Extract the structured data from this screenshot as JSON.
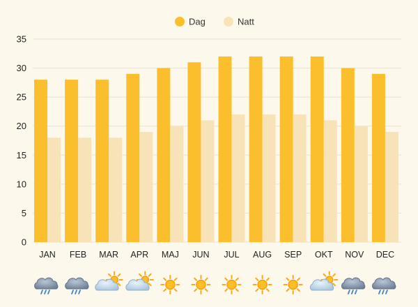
{
  "chart_data": {
    "type": "bar",
    "categories": [
      "JAN",
      "FEB",
      "MAR",
      "APR",
      "MAJ",
      "JUN",
      "JUL",
      "AUG",
      "SEP",
      "OKT",
      "NOV",
      "DEC"
    ],
    "series": [
      {
        "name": "Dag",
        "color": "#fbbf2e",
        "values": [
          28,
          28,
          28,
          29,
          30,
          31,
          32,
          32,
          32,
          32,
          30,
          29
        ]
      },
      {
        "name": "Natt",
        "color": "#f8e3b8",
        "values": [
          18,
          18,
          18,
          19,
          20,
          21,
          22,
          22,
          22,
          21,
          20,
          19
        ]
      }
    ],
    "yticks": [
      0,
      5,
      10,
      15,
      20,
      25,
      30,
      35
    ],
    "ylim": [
      0,
      35
    ],
    "grid": true,
    "legend": "top-center",
    "weather_icons": [
      "rain-cloud-icon",
      "rain-cloud-icon",
      "sun-cloud-icon",
      "sun-cloud-icon",
      "sun-icon",
      "sun-icon",
      "sun-icon",
      "sun-icon",
      "sun-icon",
      "sun-cloud-icon",
      "rain-cloud-icon",
      "rain-cloud-icon"
    ]
  }
}
